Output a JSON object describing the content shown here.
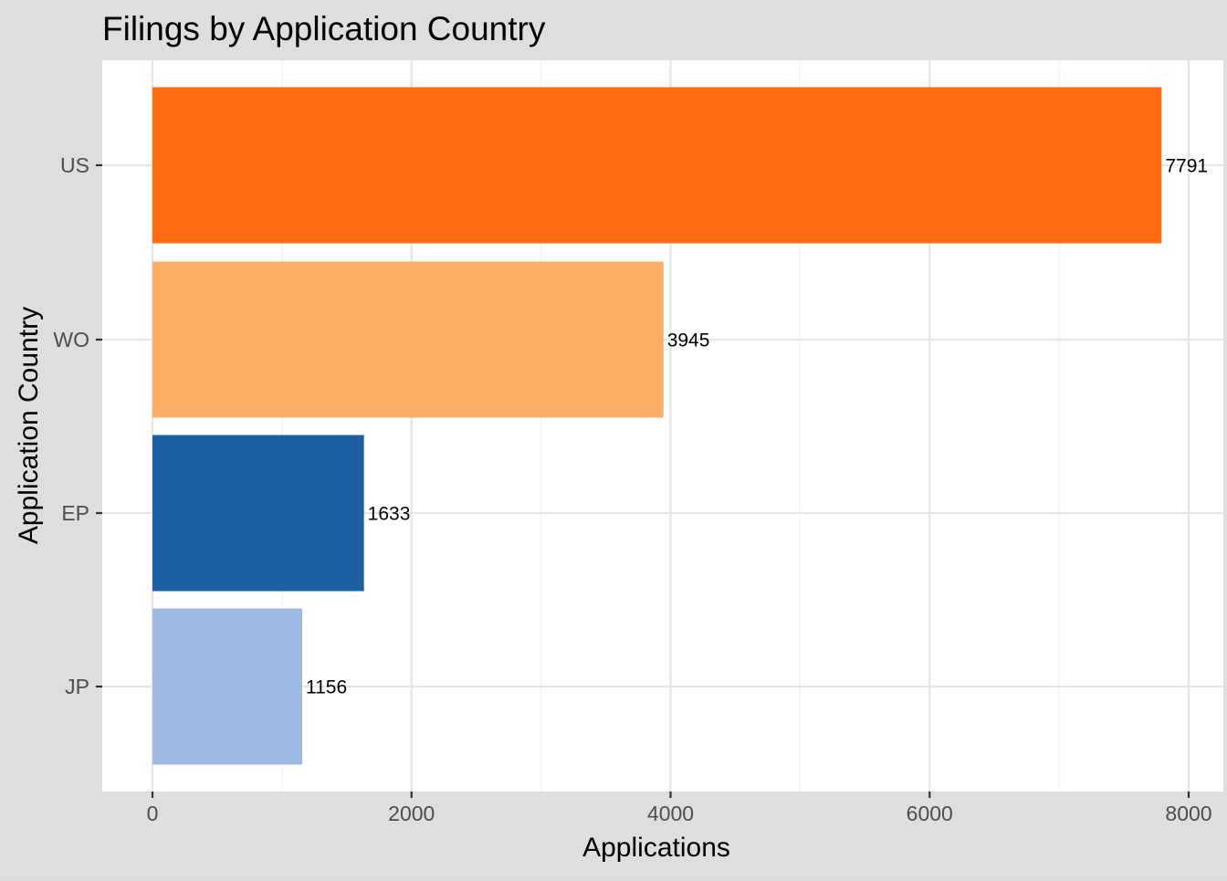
{
  "chart_data": {
    "type": "bar",
    "orientation": "horizontal",
    "title": "Filings by Application Country",
    "xlabel": "Applications",
    "ylabel": "Application Country",
    "categories": [
      "US",
      "WO",
      "EP",
      "JP"
    ],
    "values": [
      7791,
      3945,
      1633,
      1156
    ],
    "data_labels": [
      "7791",
      "3945",
      "1633",
      "1156"
    ],
    "colors": [
      "#ff6b11",
      "#fdae66",
      "#1d61a5",
      "#9eb9e2"
    ],
    "xlim": [
      0,
      8000
    ],
    "x_ticks": [
      0,
      2000,
      4000,
      6000,
      8000
    ],
    "x_tick_labels": [
      "0",
      "2000",
      "4000",
      "6000",
      "8000"
    ],
    "grid": true,
    "legend": "none"
  },
  "style": {
    "panel_background": "#ffffff",
    "plot_background": "#dedede",
    "grid_color": "#e5e5e5"
  }
}
